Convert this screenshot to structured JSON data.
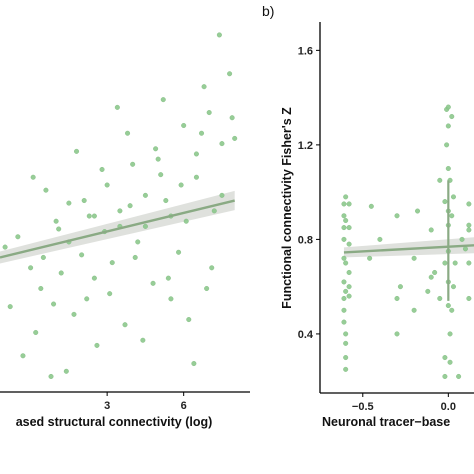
{
  "chart_data": [
    {
      "type": "scatter",
      "panel": "left",
      "xlabel": "ased structural connectivity (log)",
      "ylabel": "",
      "xticks": [
        "3",
        "6"
      ],
      "xlim": [
        -1.2,
        8.6
      ],
      "ylim": [
        0.22,
        1.65
      ],
      "point_color": "#8cc88c",
      "line_color": "#8aaa84",
      "band_color": "#d9dcd7",
      "grid": false,
      "points_x": [
        -1,
        -0.5,
        0,
        0.4,
        1,
        1.5,
        2,
        2.5,
        3,
        3.5,
        4,
        4.5,
        5,
        5.5,
        6,
        6.5,
        7,
        7.5,
        8,
        -0.8,
        0.2,
        0.6,
        1.2,
        1.8,
        2.2,
        2.8,
        3.2,
        3.8,
        4.2,
        4.8,
        5.2,
        5.8,
        6.2,
        6.8,
        7.2,
        7.8,
        -0.3,
        0.8,
        1.4,
        2.6,
        3.4,
        4.4,
        5.4,
        6.4,
        7.4,
        1.1,
        2.1,
        3.1,
        4.1,
        5.1,
        6.1,
        7.1,
        0.1,
        1.7,
        2.9,
        3.9,
        4.9,
        5.9,
        6.9,
        7.9,
        0.5,
        1.5,
        2.5,
        3.5,
        4.5,
        5.5,
        6.5,
        7.5,
        0.9,
        2.3,
        3.7,
        5.3,
        6.7
      ],
      "points_y": [
        0.78,
        0.82,
        0.7,
        0.62,
        0.88,
        0.95,
        0.75,
        0.9,
        1.02,
        0.86,
        1.1,
        0.98,
        1.12,
        0.9,
        1.25,
        1.05,
        1.3,
        1.18,
        1.2,
        0.55,
        0.45,
        1.0,
        0.68,
        1.15,
        0.58,
        1.08,
        0.72,
        1.22,
        0.8,
        0.64,
        1.35,
        0.76,
        0.5,
        1.4,
        0.92,
        1.45,
        0.36,
        0.28,
        0.3,
        0.4,
        1.32,
        0.42,
        0.66,
        0.33,
        1.6,
        0.85,
        0.96,
        0.6,
        0.74,
        1.06,
        0.88,
        0.7,
        1.05,
        0.52,
        0.84,
        0.94,
        1.16,
        1.02,
        0.62,
        1.28,
        0.74,
        0.8,
        0.66,
        0.92,
        0.86,
        0.58,
        1.14,
        0.98,
        0.56,
        0.9,
        0.48,
        0.96,
        1.22
      ],
      "trend": {
        "x": [
          -1.2,
          8.0
        ],
        "y": [
          0.74,
          0.96
        ]
      }
    },
    {
      "type": "scatter",
      "panel": "right",
      "panel_label": "b)",
      "xlabel": "Neuronal tracer−base",
      "ylabel": "Functional connectivity Fisher's Z",
      "xticks": [
        "−0.5",
        "0.0"
      ],
      "yticks": [
        "0.4",
        "0.8",
        "1.2",
        "1.6"
      ],
      "xlim": [
        -0.75,
        0.15
      ],
      "ylim": [
        0.15,
        1.72
      ],
      "point_color": "#8cc88c",
      "line_color": "#8aaa84",
      "band_color": "#d9dcd7",
      "grid": false,
      "points_x": [
        -0.61,
        -0.61,
        -0.61,
        -0.61,
        -0.61,
        -0.61,
        -0.61,
        -0.61,
        -0.61,
        -0.6,
        -0.6,
        -0.6,
        -0.6,
        -0.6,
        -0.6,
        -0.6,
        -0.6,
        -0.58,
        -0.58,
        -0.58,
        -0.58,
        -0.58,
        -0.58,
        -0.46,
        -0.45,
        -0.4,
        -0.3,
        -0.3,
        -0.3,
        -0.28,
        -0.2,
        -0.2,
        -0.18,
        -0.12,
        -0.1,
        -0.1,
        -0.08,
        -0.05,
        -0.05,
        -0.02,
        -0.02,
        -0.02,
        -0.02,
        -0.01,
        -0.01,
        0.0,
        0.0,
        0.0,
        0.0,
        0.0,
        0.0,
        0.0,
        0.0,
        0.01,
        0.01,
        0.01,
        0.02,
        0.02,
        0.02,
        0.03,
        0.03,
        0.04,
        0.06,
        0.08,
        0.1,
        0.12,
        0.12,
        0.12,
        0.12,
        0.12
      ],
      "points_y": [
        0.95,
        0.9,
        0.85,
        0.8,
        0.72,
        0.62,
        0.55,
        0.5,
        0.45,
        0.4,
        0.36,
        0.3,
        0.25,
        0.98,
        0.88,
        0.7,
        0.58,
        0.78,
        0.66,
        0.95,
        0.56,
        0.6,
        0.85,
        0.72,
        0.94,
        0.8,
        0.4,
        0.9,
        0.55,
        0.6,
        0.72,
        0.5,
        0.92,
        0.58,
        0.84,
        0.64,
        0.66,
        0.55,
        1.05,
        0.7,
        0.22,
        0.3,
        0.96,
        1.2,
        1.35,
        1.36,
        1.28,
        1.1,
        0.75,
        0.86,
        0.52,
        0.92,
        0.62,
        0.4,
        0.28,
        1.05,
        1.32,
        0.5,
        0.9,
        0.6,
        0.98,
        0.7,
        0.22,
        0.8,
        0.76,
        0.95,
        0.84,
        0.86,
        0.7,
        0.55
      ],
      "trend": {
        "x": [
          -0.61,
          0.15
        ],
        "y": [
          0.745,
          0.775
        ]
      },
      "vertical_segments": [
        {
          "x": 0.0,
          "y": [
            0.54,
            1.05
          ]
        }
      ]
    }
  ]
}
